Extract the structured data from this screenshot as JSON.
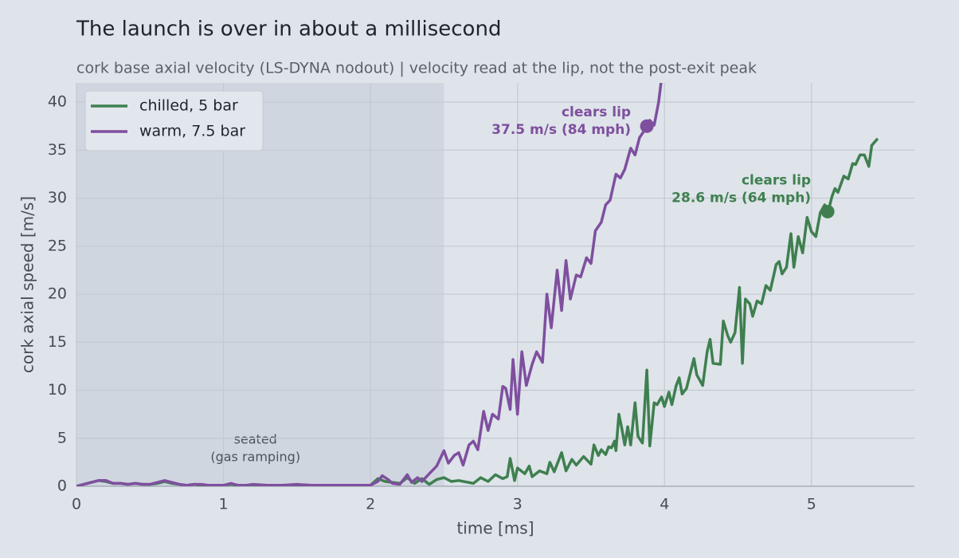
{
  "chart_data": {
    "type": "line",
    "title": "The launch is over in about a millisecond",
    "subtitle": "cork base axial velocity (LS-DYNA nodout)  |  velocity read at the lip, not the post-exit peak",
    "xlabel": "time  [ms]",
    "ylabel": "cork axial speed  [m/s]",
    "xlim": [
      0,
      5.7
    ],
    "ylim": [
      0,
      42
    ],
    "xticks": [
      0,
      1,
      2,
      3,
      4,
      5
    ],
    "yticks": [
      0,
      5,
      10,
      15,
      20,
      25,
      30,
      35,
      40
    ],
    "grid": true,
    "legend": "upper left",
    "shaded_region": {
      "x0": 0,
      "x1": 2.5,
      "label": [
        "seated",
        "(gas ramping)"
      ]
    },
    "series": [
      {
        "name": "chilled, 5 bar",
        "color": "#3f7f4f",
        "x": [
          0,
          0.05,
          0.1,
          0.15,
          0.2,
          0.25,
          0.3,
          0.35,
          0.4,
          0.45,
          0.5,
          0.55,
          0.6,
          0.65,
          0.7,
          0.75,
          0.8,
          0.85,
          0.9,
          0.95,
          1.0,
          1.05,
          1.1,
          1.15,
          1.2,
          1.3,
          1.4,
          1.5,
          1.6,
          1.7,
          1.8,
          1.9,
          2.0,
          2.05,
          2.1,
          2.2,
          2.25,
          2.3,
          2.35,
          2.4,
          2.45,
          2.5,
          2.55,
          2.6,
          2.7,
          2.75,
          2.8,
          2.85,
          2.9,
          2.93,
          2.95,
          2.98,
          3.0,
          3.05,
          3.08,
          3.1,
          3.15,
          3.2,
          3.22,
          3.25,
          3.3,
          3.33,
          3.37,
          3.4,
          3.45,
          3.5,
          3.52,
          3.55,
          3.57,
          3.6,
          3.62,
          3.64,
          3.66,
          3.67,
          3.69,
          3.71,
          3.73,
          3.75,
          3.77,
          3.8,
          3.82,
          3.85,
          3.88,
          3.9,
          3.93,
          3.95,
          3.98,
          4.0,
          4.03,
          4.05,
          4.08,
          4.1,
          4.12,
          4.15,
          4.2,
          4.22,
          4.26,
          4.29,
          4.31,
          4.33,
          4.38,
          4.4,
          4.43,
          4.45,
          4.48,
          4.51,
          4.53,
          4.55,
          4.58,
          4.6,
          4.63,
          4.66,
          4.69,
          4.72,
          4.76,
          4.78,
          4.8,
          4.83,
          4.86,
          4.88,
          4.91,
          4.94,
          4.97,
          5.0,
          5.03,
          5.06,
          5.09,
          5.11,
          5.14,
          5.16,
          5.18,
          5.22,
          5.25,
          5.28,
          5.3,
          5.33,
          5.36,
          5.39,
          5.41,
          5.45
        ],
        "values": [
          0,
          0.2,
          0.4,
          0.6,
          0.5,
          0.3,
          0.3,
          0.2,
          0.3,
          0.2,
          0.2,
          0.3,
          0.5,
          0.3,
          0.2,
          0.1,
          0.2,
          0.1,
          0.1,
          0.1,
          0.1,
          0.2,
          0.1,
          0.1,
          0.1,
          0.1,
          0.1,
          0.1,
          0.1,
          0.1,
          0.1,
          0.1,
          0.1,
          0.8,
          0.5,
          0.3,
          0.9,
          0.3,
          0.8,
          0.2,
          0.7,
          0.9,
          0.5,
          0.6,
          0.3,
          0.9,
          0.5,
          1.2,
          0.8,
          1.0,
          2.9,
          0.6,
          1.9,
          1.3,
          2.1,
          1.0,
          1.6,
          1.3,
          2.5,
          1.5,
          3.5,
          1.6,
          2.8,
          2.2,
          3.1,
          2.3,
          4.3,
          3.2,
          3.8,
          3.3,
          4.1,
          4.0,
          4.7,
          3.7,
          7.5,
          6.0,
          4.3,
          6.2,
          4.3,
          8.7,
          5.2,
          4.5,
          12.1,
          4.2,
          8.7,
          8.5,
          9.3,
          8.3,
          9.8,
          8.5,
          10.5,
          11.3,
          9.6,
          10.2,
          13.3,
          11.6,
          10.5,
          14.0,
          15.3,
          12.8,
          12.7,
          17.2,
          15.7,
          15.0,
          16.0,
          20.7,
          12.8,
          19.5,
          19.0,
          17.7,
          19.3,
          19.0,
          20.9,
          20.4,
          23.1,
          23.4,
          22.1,
          22.8,
          26.3,
          22.8,
          26.0,
          24.3,
          28.0,
          26.5,
          26.0,
          28.5,
          29.3,
          28.4,
          30.2,
          31.0,
          30.6,
          32.3,
          32.0,
          33.6,
          33.5,
          34.5,
          34.5,
          33.3,
          35.5,
          36.2
        ]
      },
      {
        "name": "warm, 7.5 bar",
        "color": "#7f4f9f",
        "x": [
          0,
          0.05,
          0.1,
          0.15,
          0.2,
          0.25,
          0.3,
          0.35,
          0.4,
          0.45,
          0.5,
          0.55,
          0.6,
          0.65,
          0.7,
          0.75,
          0.8,
          0.85,
          0.9,
          0.95,
          1.0,
          1.05,
          1.1,
          1.15,
          1.2,
          1.3,
          1.4,
          1.5,
          1.6,
          1.7,
          1.8,
          1.9,
          2.0,
          2.05,
          2.08,
          2.12,
          2.15,
          2.2,
          2.25,
          2.28,
          2.32,
          2.35,
          2.4,
          2.45,
          2.5,
          2.53,
          2.57,
          2.6,
          2.63,
          2.67,
          2.7,
          2.73,
          2.77,
          2.8,
          2.83,
          2.87,
          2.9,
          2.92,
          2.95,
          2.97,
          3.0,
          3.03,
          3.06,
          3.1,
          3.13,
          3.17,
          3.2,
          3.23,
          3.27,
          3.3,
          3.33,
          3.36,
          3.4,
          3.43,
          3.47,
          3.5,
          3.53,
          3.57,
          3.6,
          3.63,
          3.67,
          3.7,
          3.73,
          3.77,
          3.8,
          3.83,
          3.87,
          3.9,
          3.93,
          3.96,
          3.98
        ],
        "values": [
          0,
          0.2,
          0.4,
          0.6,
          0.6,
          0.3,
          0.3,
          0.2,
          0.3,
          0.2,
          0.2,
          0.4,
          0.6,
          0.4,
          0.2,
          0.1,
          0.2,
          0.2,
          0.1,
          0.1,
          0.1,
          0.3,
          0.1,
          0.1,
          0.2,
          0.1,
          0.1,
          0.2,
          0.1,
          0.1,
          0.1,
          0.1,
          0.1,
          0.5,
          1.1,
          0.7,
          0.3,
          0.2,
          1.2,
          0.4,
          0.9,
          0.5,
          1.3,
          2.1,
          3.7,
          2.4,
          3.2,
          3.5,
          2.2,
          4.3,
          4.7,
          3.8,
          7.8,
          5.8,
          7.5,
          7.0,
          10.4,
          10.2,
          8.0,
          13.2,
          7.5,
          14.0,
          10.5,
          12.7,
          14.0,
          12.9,
          20.0,
          16.5,
          22.5,
          18.3,
          23.5,
          19.5,
          22.0,
          21.8,
          23.8,
          23.2,
          26.6,
          27.5,
          29.3,
          29.8,
          32.5,
          32.1,
          33.0,
          35.2,
          34.5,
          36.3,
          37.2,
          38.1,
          37.6,
          40.0,
          42.5
        ]
      }
    ],
    "annotations": [
      {
        "series": 1,
        "x": 3.88,
        "y": 37.5,
        "label": "clears lip",
        "text": "37.5 m/s (84 mph)"
      },
      {
        "series": 0,
        "x": 5.11,
        "y": 28.6,
        "label": "clears lip",
        "text": "28.6 m/s (64 mph)"
      }
    ]
  }
}
